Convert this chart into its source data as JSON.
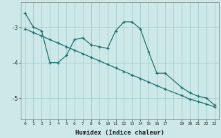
{
  "xlabel": "Humidex (Indice chaleur)",
  "ylabel": "",
  "background_color": "#cce8e8",
  "grid_color": "#aad0d0",
  "line_color": "#1a6e6e",
  "x_line1": [
    0,
    1,
    2,
    3,
    4,
    5,
    6,
    7,
    8,
    9,
    10,
    11,
    12,
    13,
    14,
    15,
    16,
    17,
    19,
    20,
    21,
    22,
    23
  ],
  "y_line1": [
    -2.6,
    -3.0,
    -3.1,
    -4.0,
    -4.0,
    -3.8,
    -3.35,
    -3.3,
    -3.5,
    -3.55,
    -3.6,
    -3.1,
    -2.85,
    -2.85,
    -3.05,
    -3.7,
    -4.3,
    -4.3,
    -4.7,
    -4.85,
    -4.95,
    -5.0,
    -5.2
  ],
  "x_line2": [
    0,
    1,
    2,
    3,
    4,
    5,
    6,
    7,
    8,
    9,
    10,
    11,
    12,
    13,
    14,
    15,
    16,
    17,
    19,
    20,
    21,
    22,
    23
  ],
  "y_line2": [
    -3.05,
    -3.15,
    -3.25,
    -3.35,
    -3.45,
    -3.55,
    -3.65,
    -3.75,
    -3.85,
    -3.95,
    -4.05,
    -4.15,
    -4.25,
    -4.35,
    -4.45,
    -4.55,
    -4.65,
    -4.75,
    -4.93,
    -5.03,
    -5.1,
    -5.17,
    -5.25
  ],
  "xlim": [
    -0.5,
    23.5
  ],
  "ylim": [
    -5.6,
    -2.3
  ],
  "yticks": [
    -5,
    -4,
    -3
  ],
  "xticks": [
    0,
    1,
    2,
    3,
    4,
    5,
    6,
    7,
    8,
    9,
    10,
    11,
    12,
    13,
    14,
    15,
    16,
    17,
    19,
    20,
    21,
    22,
    23
  ]
}
